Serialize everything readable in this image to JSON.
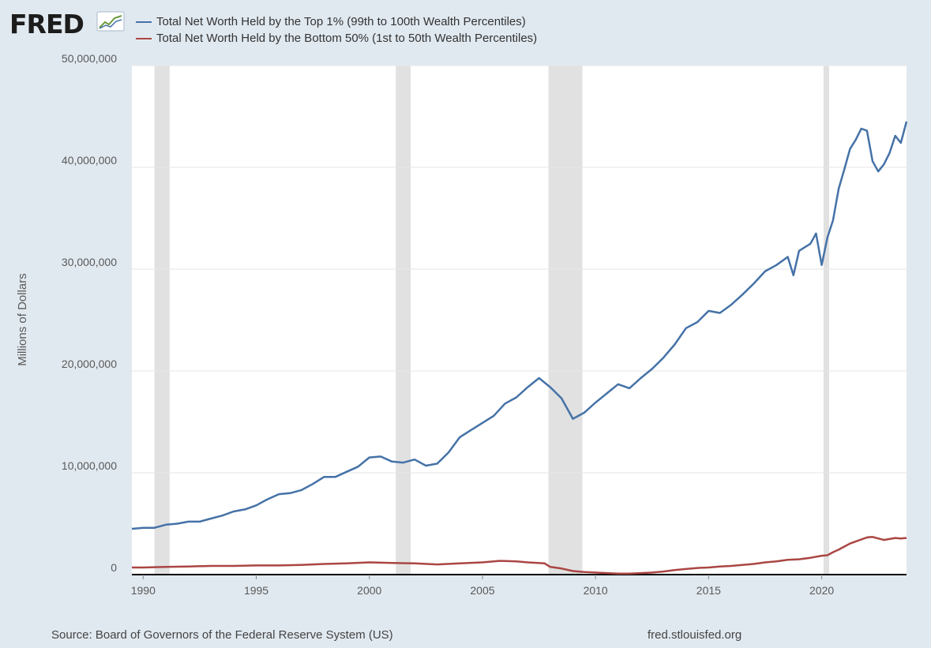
{
  "logo": {
    "text": "FRED",
    "mark_icon": "fred-graph-icon"
  },
  "source": "Source: Board of Governors of the Federal Reserve System (US)",
  "site": "fred.stlouisfed.org",
  "colors": {
    "background": "#e1e9f0",
    "plot": "#ffffff",
    "top1": "#4572a7",
    "bottom50": "#aa4643",
    "recession": "#e1e1e1",
    "grid": "#e6e6e6"
  },
  "chart_data": {
    "type": "line",
    "title": "",
    "xlabel": "",
    "ylabel": "Millions of Dollars",
    "xlim": [
      1989.5,
      2023.75
    ],
    "ylim": [
      0,
      50000000
    ],
    "x_ticks": [
      1990,
      1995,
      2000,
      2005,
      2010,
      2015,
      2020
    ],
    "x_tick_labels": [
      "1990",
      "1995",
      "2000",
      "2005",
      "2010",
      "2015",
      "2020"
    ],
    "y_ticks": [
      0,
      10000000,
      20000000,
      30000000,
      40000000,
      50000000
    ],
    "y_tick_labels": [
      "0",
      "10,000,000",
      "20,000,000",
      "30,000,000",
      "40,000,000",
      "50,000,000"
    ],
    "grid": true,
    "legend_position": "top-left",
    "recessions": [
      [
        1990.5,
        1991.17
      ],
      [
        2001.17,
        2001.83
      ],
      [
        2007.92,
        2009.42
      ],
      [
        2020.08,
        2020.33
      ]
    ],
    "series": [
      {
        "name": "Total Net Worth Held by the Top 1% (99th to 100th Wealth Percentiles)",
        "color": "#4572a7",
        "x": [
          1989.5,
          1990,
          1990.5,
          1991,
          1991.5,
          1992,
          1992.5,
          1993,
          1993.5,
          1994,
          1994.5,
          1995,
          1995.5,
          1996,
          1996.5,
          1997,
          1997.5,
          1998,
          1998.5,
          1999,
          1999.5,
          2000,
          2000.5,
          2001,
          2001.5,
          2002,
          2002.5,
          2003,
          2003.5,
          2004,
          2004.5,
          2005,
          2005.5,
          2006,
          2006.5,
          2007,
          2007.5,
          2008,
          2008.5,
          2009,
          2009.5,
          2010,
          2010.5,
          2011,
          2011.5,
          2012,
          2012.5,
          2013,
          2013.5,
          2014,
          2014.5,
          2015,
          2015.5,
          2016,
          2016.5,
          2017,
          2017.5,
          2018,
          2018.5,
          2018.75,
          2019,
          2019.5,
          2019.75,
          2020,
          2020.25,
          2020.5,
          2020.75,
          2021,
          2021.25,
          2021.5,
          2021.75,
          2022,
          2022.25,
          2022.5,
          2022.75,
          2023,
          2023.25,
          2023.5,
          2023.75
        ],
        "values": [
          4500000,
          4600000,
          4600000,
          4900000,
          5000000,
          5200000,
          5200000,
          5500000,
          5800000,
          6200000,
          6400000,
          6800000,
          7400000,
          7900000,
          8000000,
          8300000,
          8900000,
          9600000,
          9600000,
          10100000,
          10600000,
          11500000,
          11600000,
          11100000,
          11000000,
          11300000,
          10700000,
          10900000,
          12000000,
          13500000,
          14200000,
          14900000,
          15600000,
          16800000,
          17400000,
          18400000,
          19300000,
          18400000,
          17300000,
          15300000,
          15900000,
          16900000,
          17800000,
          18700000,
          18300000,
          19300000,
          20200000,
          21300000,
          22600000,
          24200000,
          24800000,
          25900000,
          25700000,
          26500000,
          27500000,
          28600000,
          29800000,
          30400000,
          31200000,
          29400000,
          31800000,
          32500000,
          33500000,
          30400000,
          33100000,
          34800000,
          37900000,
          39800000,
          41800000,
          42700000,
          43800000,
          43600000,
          40600000,
          39600000,
          40300000,
          41400000,
          43100000,
          42400000,
          44500000
        ]
      },
      {
        "name": "Total Net Worth Held by the Bottom 50% (1st to 50th Wealth Percentiles)",
        "color": "#aa4643",
        "x": [
          1989.5,
          1990,
          1991,
          1992,
          1993,
          1994,
          1995,
          1996,
          1997,
          1998,
          1999,
          2000,
          2001,
          2002,
          2003,
          2004,
          2005,
          2005.75,
          2006.5,
          2007,
          2007.75,
          2008,
          2008.5,
          2009,
          2009.5,
          2010,
          2010.5,
          2011,
          2011.5,
          2012,
          2012.5,
          2013,
          2013.5,
          2014,
          2014.5,
          2015,
          2015.5,
          2016,
          2016.5,
          2017,
          2017.5,
          2018,
          2018.5,
          2019,
          2019.5,
          2020,
          2020.25,
          2020.5,
          2020.75,
          2021,
          2021.25,
          2021.5,
          2021.75,
          2022,
          2022.25,
          2022.5,
          2022.75,
          2023,
          2023.25,
          2023.5,
          2023.75
        ],
        "values": [
          700000,
          700000,
          750000,
          800000,
          850000,
          850000,
          900000,
          900000,
          950000,
          1050000,
          1100000,
          1200000,
          1150000,
          1100000,
          1000000,
          1100000,
          1200000,
          1350000,
          1300000,
          1200000,
          1100000,
          750000,
          600000,
          350000,
          250000,
          200000,
          150000,
          100000,
          100000,
          150000,
          200000,
          300000,
          450000,
          550000,
          650000,
          700000,
          800000,
          850000,
          950000,
          1050000,
          1200000,
          1300000,
          1450000,
          1500000,
          1650000,
          1850000,
          1900000,
          2200000,
          2450000,
          2750000,
          3050000,
          3250000,
          3450000,
          3650000,
          3700000,
          3550000,
          3400000,
          3500000,
          3600000,
          3550000,
          3600000
        ]
      }
    ]
  }
}
